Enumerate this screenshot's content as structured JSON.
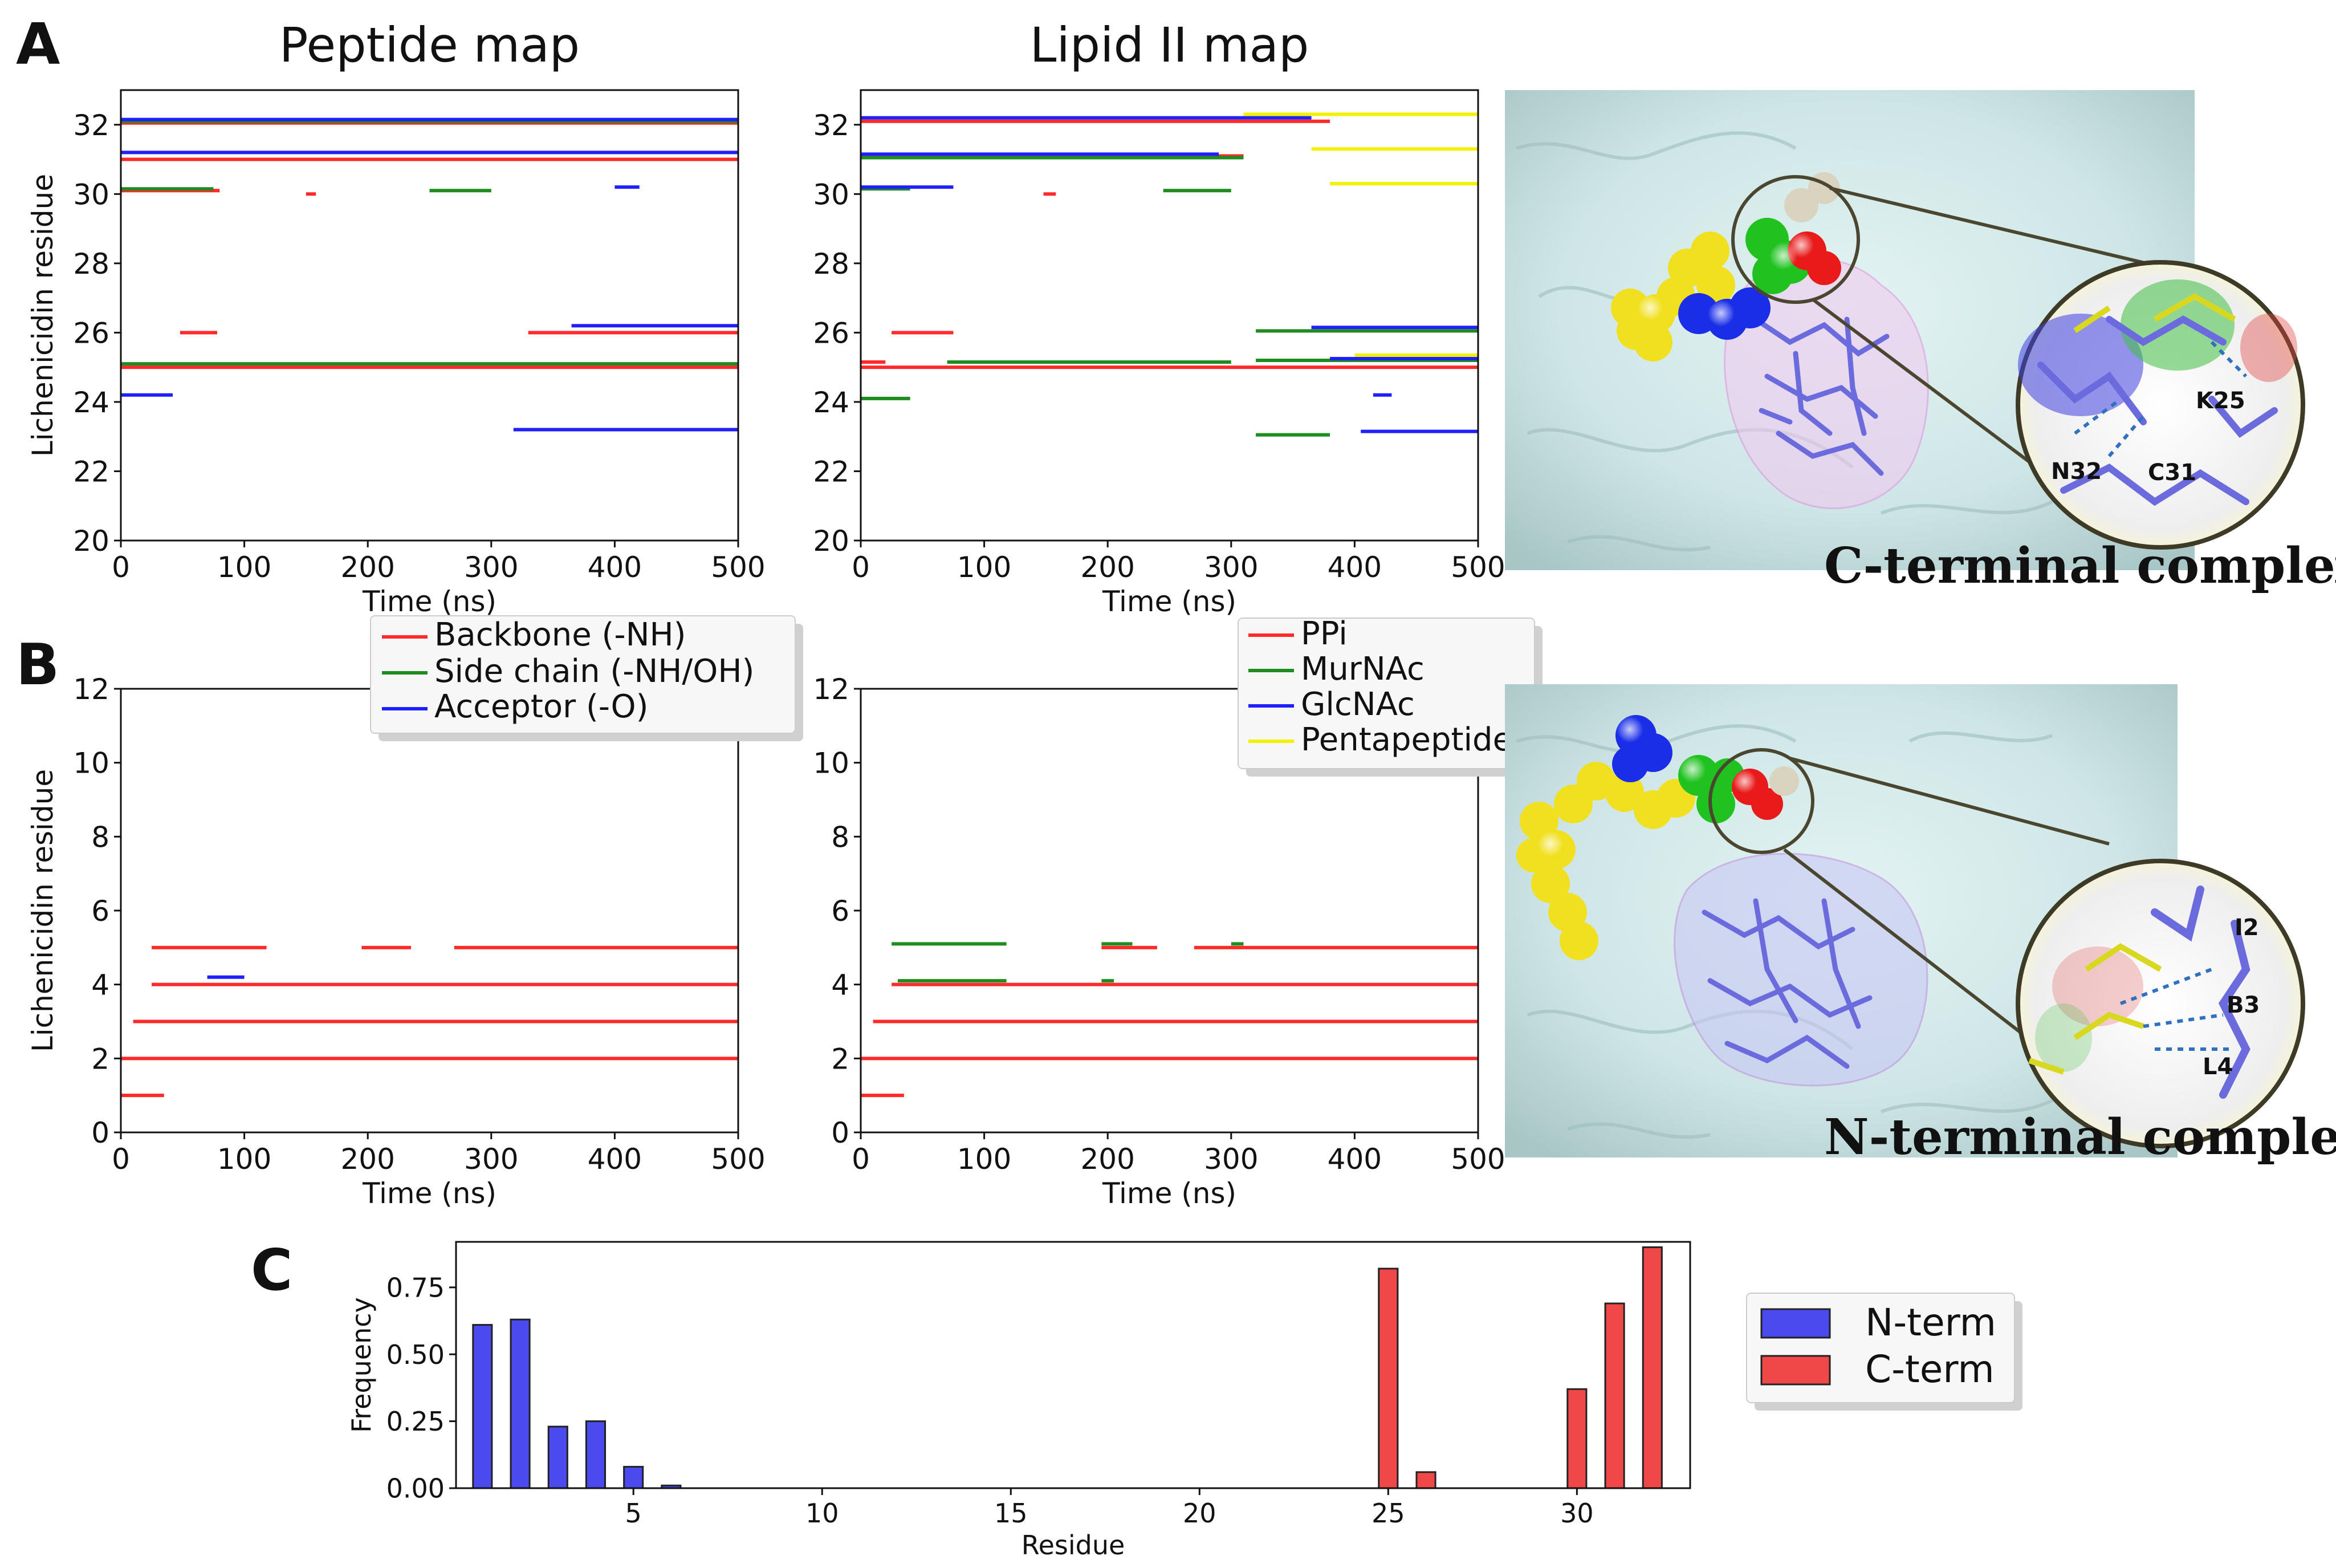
{
  "panel_letters": [
    "A",
    "B",
    "C"
  ],
  "colors": {
    "backbone": "#ff2a2a",
    "sidechain": "#1e8c1e",
    "acceptor": "#2020ff",
    "pentapeptide": "#f2f200",
    "nterm": "#4a4aee",
    "cterm": "#f04848"
  },
  "legend_peptide": {
    "items": [
      "Backbone (-NH)",
      "Side chain (-NH/OH)",
      "Acceptor (-O)"
    ],
    "colors": [
      "#ff2a2a",
      "#1e8c1e",
      "#2020ff"
    ]
  },
  "legend_lipid": {
    "items": [
      "PPi",
      "MurNAc",
      "GlcNAc",
      "Pentapeptide"
    ],
    "colors": [
      "#ff2a2a",
      "#1e8c1e",
      "#2020ff",
      "#f2f200"
    ]
  },
  "legend_freq": {
    "items": [
      "N-term",
      "C-term"
    ],
    "colors": [
      "#4a4aee",
      "#f04848"
    ]
  },
  "images": {
    "c_label": "C-terminal complex",
    "c_residues": [
      "K25",
      "N32",
      "C31"
    ],
    "n_label": "N-terminal complex",
    "n_residues": [
      "I2",
      "B3",
      "L4"
    ]
  },
  "chart_data": [
    {
      "id": "A-peptide",
      "type": "scatter",
      "title": "Peptide map",
      "xlabel": "Time (ns)",
      "ylabel": "Lichenicidin residue",
      "xlim": [
        0,
        500
      ],
      "ylim": [
        20,
        33
      ],
      "xticks": [
        0,
        100,
        200,
        300,
        400,
        500
      ],
      "yticks": [
        20,
        22,
        24,
        26,
        28,
        30,
        32
      ],
      "series": [
        {
          "name": "Backbone (-NH)",
          "color": "#ff2a2a",
          "segments": [
            [
              32.05,
              0,
              500
            ],
            [
              31.0,
              0,
              500
            ],
            [
              30.1,
              0,
              80
            ],
            [
              25.0,
              0,
              500
            ],
            [
              26.0,
              48,
              78
            ],
            [
              26.0,
              330,
              500
            ],
            [
              30.0,
              150,
              158
            ]
          ]
        },
        {
          "name": "Side chain (-NH/OH)",
          "color": "#1e8c1e",
          "segments": [
            [
              32.1,
              0,
              500
            ],
            [
              30.15,
              0,
              75
            ],
            [
              30.1,
              250,
              300
            ],
            [
              25.1,
              0,
              500
            ]
          ]
        },
        {
          "name": "Acceptor (-O)",
          "color": "#2020ff",
          "segments": [
            [
              32.15,
              0,
              500
            ],
            [
              31.2,
              0,
              500
            ],
            [
              26.2,
              365,
              500
            ],
            [
              23.2,
              318,
              500
            ],
            [
              24.2,
              0,
              42
            ],
            [
              30.2,
              400,
              420
            ]
          ]
        }
      ]
    },
    {
      "id": "A-lipid",
      "type": "scatter",
      "title": "Lipid II map",
      "xlabel": "Time (ns)",
      "ylabel": "",
      "xlim": [
        0,
        500
      ],
      "ylim": [
        20,
        33
      ],
      "xticks": [
        0,
        100,
        200,
        300,
        400,
        500
      ],
      "yticks": [
        20,
        22,
        24,
        26,
        28,
        30,
        32
      ],
      "series": [
        {
          "name": "PPi",
          "color": "#ff2a2a",
          "segments": [
            [
              25.0,
              0,
              500
            ],
            [
              26.0,
              25,
              75
            ],
            [
              30.0,
              148,
              158
            ],
            [
              32.1,
              0,
              380
            ],
            [
              31.1,
              0,
              310
            ],
            [
              25.15,
              0,
              20
            ]
          ]
        },
        {
          "name": "MurNAc",
          "color": "#1e8c1e",
          "segments": [
            [
              31.05,
              0,
              310
            ],
            [
              30.15,
              0,
              40
            ],
            [
              25.15,
              70,
              300
            ],
            [
              26.05,
              320,
              500
            ],
            [
              25.2,
              320,
              500
            ],
            [
              24.1,
              0,
              40
            ],
            [
              30.1,
              245,
              300
            ],
            [
              23.05,
              320,
              380
            ]
          ]
        },
        {
          "name": "GlcNAc",
          "color": "#2020ff",
          "segments": [
            [
              32.2,
              0,
              365
            ],
            [
              31.15,
              0,
              290
            ],
            [
              30.2,
              0,
              75
            ],
            [
              26.15,
              365,
              500
            ],
            [
              25.25,
              380,
              500
            ],
            [
              23.15,
              405,
              500
            ],
            [
              24.2,
              415,
              430
            ]
          ]
        },
        {
          "name": "Pentapeptide",
          "color": "#f2f200",
          "segments": [
            [
              32.3,
              310,
              500
            ],
            [
              31.3,
              365,
              500
            ],
            [
              30.3,
              380,
              500
            ],
            [
              25.35,
              400,
              500
            ]
          ]
        }
      ]
    },
    {
      "id": "B-peptide",
      "type": "scatter",
      "title": "",
      "xlabel": "Time (ns)",
      "ylabel": "Lichenicidin residue",
      "xlim": [
        0,
        500
      ],
      "ylim": [
        0,
        12
      ],
      "xticks": [
        0,
        100,
        200,
        300,
        400,
        500
      ],
      "yticks": [
        0,
        2,
        4,
        6,
        8,
        10,
        12
      ],
      "series": [
        {
          "name": "Backbone (-NH)",
          "color": "#ff2a2a",
          "segments": [
            [
              5.0,
              25,
              118
            ],
            [
              5.0,
              195,
              235
            ],
            [
              5.0,
              270,
              500
            ],
            [
              4.0,
              25,
              500
            ],
            [
              3.0,
              10,
              500
            ],
            [
              2.0,
              0,
              500
            ],
            [
              1.0,
              0,
              35
            ]
          ]
        },
        {
          "name": "Side chain (-NH/OH)",
          "color": "#1e8c1e",
          "segments": []
        },
        {
          "name": "Acceptor (-O)",
          "color": "#2020ff",
          "segments": [
            [
              4.2,
              70,
              100
            ]
          ]
        }
      ]
    },
    {
      "id": "B-lipid",
      "type": "scatter",
      "title": "",
      "xlabel": "Time (ns)",
      "ylabel": "",
      "xlim": [
        0,
        500
      ],
      "ylim": [
        0,
        12
      ],
      "xticks": [
        0,
        100,
        200,
        300,
        400,
        500
      ],
      "yticks": [
        0,
        2,
        4,
        6,
        8,
        10,
        12
      ],
      "series": [
        {
          "name": "PPi",
          "color": "#ff2a2a",
          "segments": [
            [
              5.0,
              195,
              240
            ],
            [
              5.0,
              270,
              500
            ],
            [
              4.0,
              25,
              500
            ],
            [
              3.0,
              10,
              500
            ],
            [
              2.0,
              0,
              500
            ],
            [
              1.0,
              0,
              35
            ]
          ]
        },
        {
          "name": "MurNAc",
          "color": "#1e8c1e",
          "segments": [
            [
              5.1,
              25,
              118
            ],
            [
              4.1,
              30,
              118
            ],
            [
              5.1,
              195,
              220
            ],
            [
              5.1,
              300,
              310
            ],
            [
              4.1,
              195,
              205
            ]
          ]
        },
        {
          "name": "GlcNAc",
          "color": "#2020ff",
          "segments": []
        },
        {
          "name": "Pentapeptide",
          "color": "#f2f200",
          "segments": []
        }
      ]
    },
    {
      "id": "C-frequency",
      "type": "bar",
      "title": "",
      "xlabel": "Residue",
      "ylabel": "Frequency",
      "xlim": [
        0.3,
        33
      ],
      "ylim": [
        0,
        0.92
      ],
      "xticks": [
        5,
        10,
        15,
        20,
        25,
        30
      ],
      "yticks": [
        0.0,
        0.25,
        0.5,
        0.75
      ],
      "ytick_labels": [
        "0.00",
        "0.25",
        "0.50",
        "0.75"
      ],
      "series": [
        {
          "name": "N-term",
          "color": "#4a4aee",
          "x": [
            1,
            2,
            3,
            4,
            5,
            6
          ],
          "values": [
            0.61,
            0.63,
            0.23,
            0.25,
            0.08,
            0.01
          ]
        },
        {
          "name": "C-term",
          "color": "#f04848",
          "x": [
            25,
            26,
            30,
            31,
            32
          ],
          "values": [
            0.82,
            0.06,
            0.37,
            0.69,
            0.9
          ]
        }
      ]
    }
  ]
}
